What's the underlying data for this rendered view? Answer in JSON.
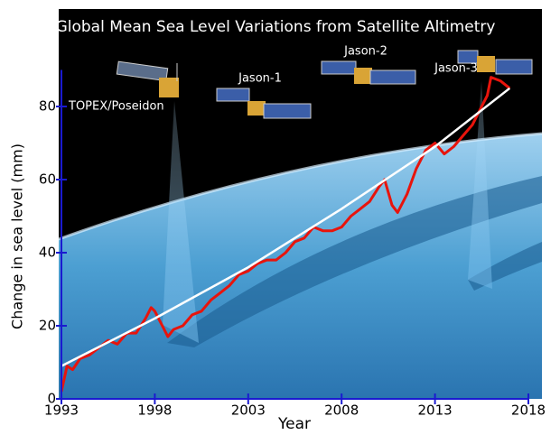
{
  "chart_data": {
    "type": "line",
    "title": "Global Mean Sea Level Variations from Satellite Altimetry",
    "xlabel": "Year",
    "ylabel": "Change in sea level (mm)",
    "annotations": [
      "TOPEX/Poseidon",
      "Jason-1",
      "Jason-2",
      "Jason-3"
    ],
    "series": [
      {
        "color": "#e8140c",
        "x": [
          1993.0,
          1993.3,
          1993.6,
          1994.0,
          1994.5,
          1995.0,
          1995.5,
          1996.0,
          1996.5,
          1997.0,
          1997.5,
          1997.8,
          1998.0,
          1998.4,
          1998.7,
          1999.0,
          1999.5,
          2000.0,
          2000.5,
          2001.0,
          2001.5,
          2002.0,
          2002.5,
          2003.0,
          2003.5,
          2004.0,
          2004.5,
          2005.0,
          2005.5,
          2006.0,
          2006.5,
          2007.0,
          2007.5,
          2008.0,
          2008.5,
          2009.0,
          2009.5,
          2010.0,
          2010.3,
          2010.7,
          2011.0,
          2011.5,
          2012.0,
          2012.5,
          2013.0,
          2013.5,
          2014.0,
          2014.5,
          2015.0,
          2015.5,
          2015.8,
          2016.0,
          2016.5,
          2017.0
        ],
        "values": [
          2,
          9,
          8,
          11,
          12,
          14,
          16,
          15,
          18,
          18,
          22,
          25,
          24,
          20,
          17,
          19,
          20,
          23,
          24,
          27,
          29,
          31,
          34,
          35,
          37,
          38,
          38,
          40,
          43,
          44,
          47,
          46,
          46,
          47,
          50,
          52,
          54,
          58,
          60,
          53,
          51,
          56,
          63,
          68,
          70,
          67,
          69,
          72,
          75,
          80,
          83,
          88,
          87,
          85
        ]
      },
      {
        "color": "#ffffff",
        "x": [
          1993,
          1998,
          2003,
          2008,
          2013,
          2017
        ],
        "values": [
          9,
          22,
          36,
          52,
          69,
          85
        ]
      }
    ],
    "xlim": [
      1993,
      2018
    ],
    "xticks": [
      1993,
      1998,
      2003,
      2008,
      2013,
      2018
    ],
    "ylim": [
      0,
      90
    ],
    "yticks": [
      0,
      20,
      40,
      60,
      80
    ],
    "axis_color": "#1a1ad0"
  }
}
